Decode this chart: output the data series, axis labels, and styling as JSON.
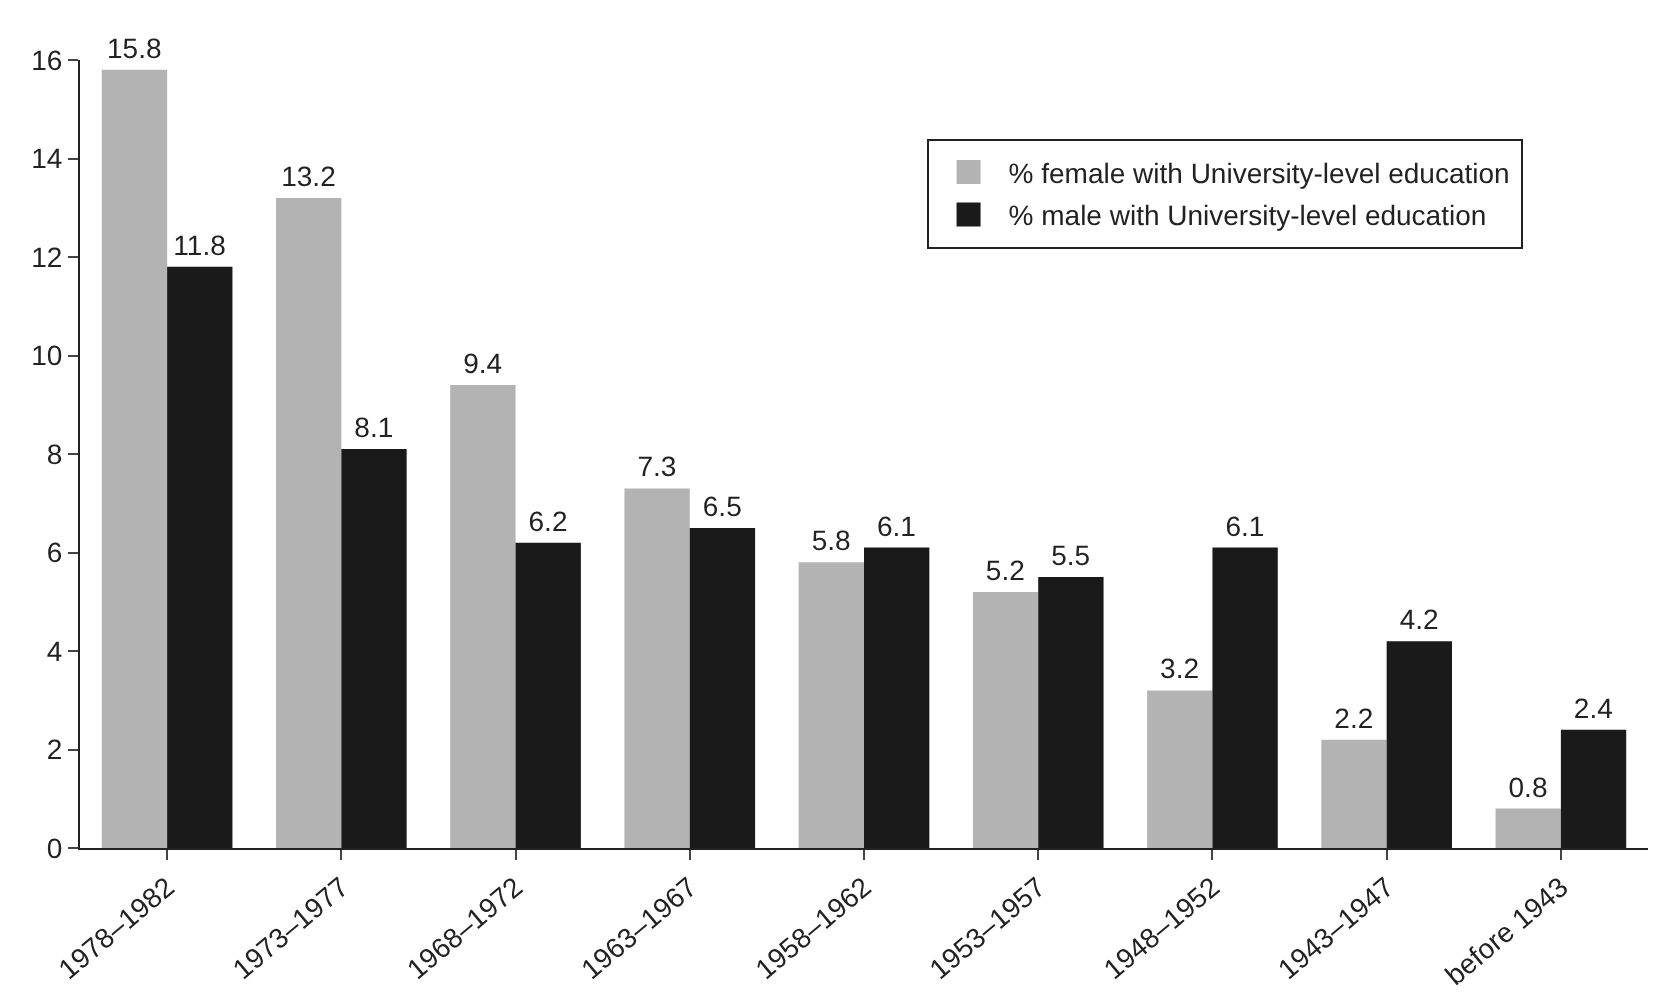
{
  "chart_data": {
    "type": "bar",
    "categories": [
      "1978–1982",
      "1973–1977",
      "1968–1972",
      "1963–1967",
      "1958–1962",
      "1953–1957",
      "1948–1952",
      "1943–1947",
      "before 1943"
    ],
    "series": [
      {
        "name": "% female with University-level education",
        "color": "#b3b3b3",
        "values": [
          15.8,
          13.2,
          9.4,
          7.3,
          5.8,
          5.2,
          3.2,
          2.2,
          0.8
        ]
      },
      {
        "name": "% male with University-level education",
        "color": "#1a1a1a",
        "values": [
          11.8,
          8.1,
          6.2,
          6.5,
          6.1,
          5.5,
          6.1,
          4.2,
          2.4
        ]
      }
    ],
    "ylim": [
      0,
      16
    ],
    "yticks": [
      0,
      2,
      4,
      6,
      8,
      10,
      12,
      14,
      16
    ],
    "data_labels": true,
    "legend": "top right"
  }
}
